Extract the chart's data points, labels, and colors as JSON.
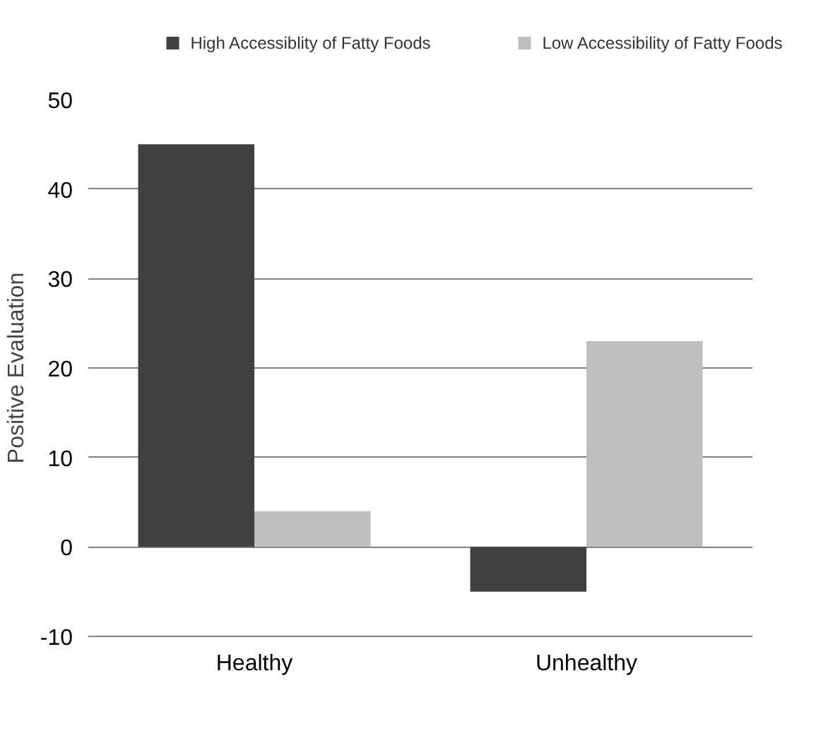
{
  "chart_data": {
    "type": "bar",
    "categories": [
      "Healthy",
      "Unhealthy"
    ],
    "ylabel": "Positive Evaluation",
    "series": [
      {
        "name": "High Accessiblity of Fatty Foods",
        "color": "#404040",
        "values": [
          45,
          -5
        ]
      },
      {
        "name": "Low Accessibility of Fatty Foods",
        "color": "#bfbfbf",
        "values": [
          4,
          23
        ]
      }
    ],
    "ylim": [
      -10,
      50
    ],
    "yticks": [
      {
        "value": -10,
        "label": "-10"
      },
      0,
      10,
      20,
      30,
      40,
      50
    ],
    "grid": "y",
    "legend": "top"
  }
}
